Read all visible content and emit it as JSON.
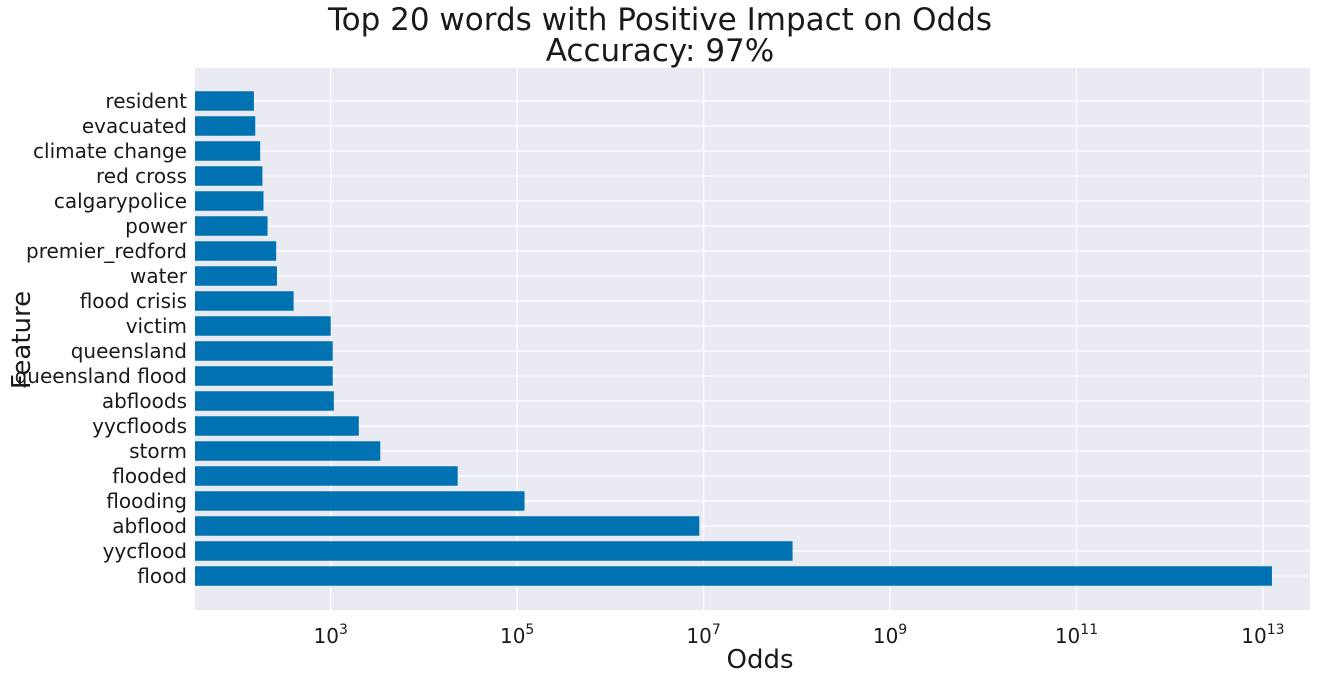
{
  "chart_data": {
    "type": "bar",
    "orientation": "horizontal",
    "title": "Top 20 words with Positive Impact on Odds",
    "subtitle": "Accuracy: 97%",
    "xlabel": "Odds",
    "ylabel": "Feature",
    "xscale": "log",
    "xlim": [
      35,
      32000000000000.0
    ],
    "xticks": [
      {
        "value": 1000,
        "base": "10",
        "exp": "3"
      },
      {
        "value": 100000,
        "base": "10",
        "exp": "5"
      },
      {
        "value": 10000000,
        "base": "10",
        "exp": "7"
      },
      {
        "value": 1000000000,
        "base": "10",
        "exp": "9"
      },
      {
        "value": 100000000000,
        "base": "10",
        "exp": "11"
      },
      {
        "value": 10000000000000,
        "base": "10",
        "exp": "13"
      }
    ],
    "grid": true,
    "bar_color": "#0072b2",
    "background_color": "#eaeaf2",
    "categories": [
      "resident",
      "evacuated",
      "climate change",
      "red cross",
      "calgarypolice",
      "power",
      "premier_redford",
      "water",
      "flood crisis",
      "victim",
      "queensland",
      "queensland flood",
      "abfloods",
      "yycfloods",
      "storm",
      "flooded",
      "flooding",
      "abflood",
      "yycflood",
      "flood"
    ],
    "values": [
      150,
      155,
      175,
      185,
      190,
      210,
      260,
      265,
      400,
      1000,
      1050,
      1050,
      1080,
      2000,
      3400,
      23000,
      120000,
      9000000,
      90000000,
      12500000000000.0
    ]
  }
}
